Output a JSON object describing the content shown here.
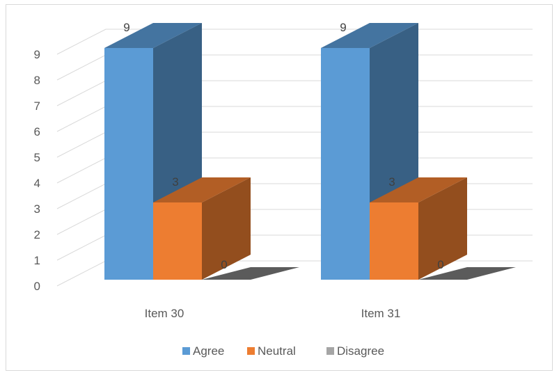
{
  "chart_data": {
    "type": "bar",
    "variant": "3d-clustered-column",
    "categories": [
      "Item 30",
      "Item 31"
    ],
    "series": [
      {
        "name": "Agree",
        "values": [
          9,
          9
        ],
        "color": "#5b9bd5"
      },
      {
        "name": "Neutral",
        "values": [
          3,
          3
        ],
        "color": "#ed7d31"
      },
      {
        "name": "Disagree",
        "values": [
          0,
          0
        ],
        "color": "#a5a5a5"
      }
    ],
    "ylim": [
      0,
      9
    ],
    "yticks": [
      "0",
      "1",
      "2",
      "3",
      "4",
      "5",
      "6",
      "7",
      "8",
      "9"
    ],
    "data_labels": true,
    "grid": true,
    "legend": "bottom"
  }
}
